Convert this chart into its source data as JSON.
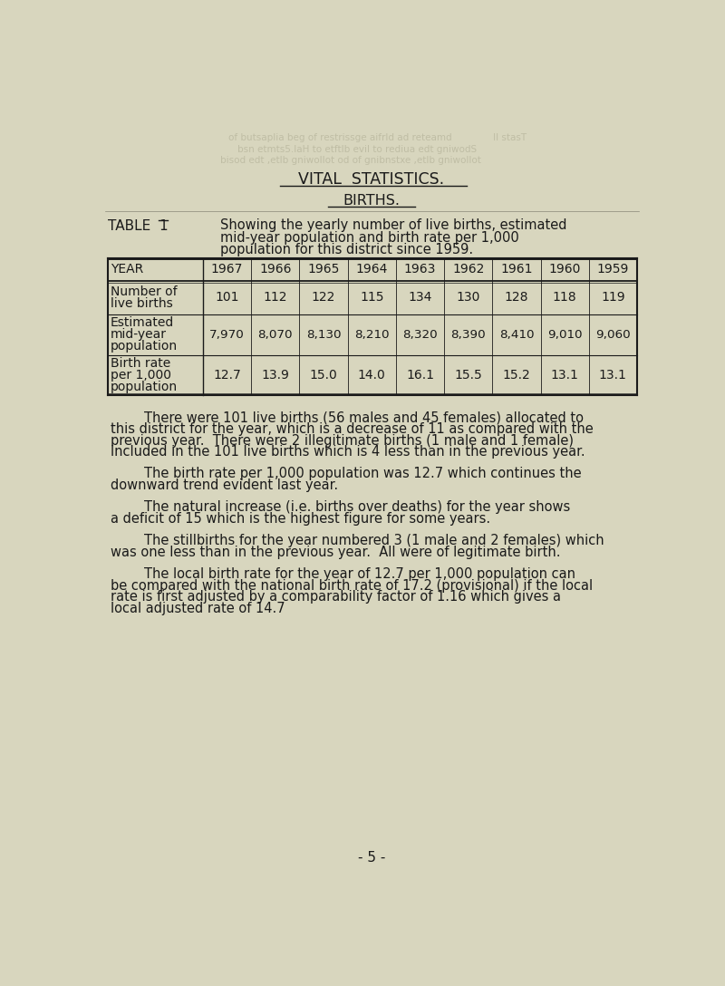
{
  "bg_color": "#d8d6be",
  "text_color": "#1a1a1a",
  "faded_color": "#9a9880",
  "title1": "VITAL  STATISTICS.",
  "title2": "BIRTHS.",
  "table_label_pre": "TABLE ",
  "table_label_num": "1",
  "table_desc_line1": "Showing the yearly number of live births, estimated",
  "table_desc_line2": "mid-year population and birth rate per 1,000",
  "table_desc_line3": "population for this district since 1959.",
  "years": [
    "1967",
    "1966",
    "1965",
    "1964",
    "1963",
    "1962",
    "1961",
    "1960",
    "1959"
  ],
  "live_births": [
    "101",
    "112",
    "122",
    "115",
    "134",
    "130",
    "128",
    "118",
    "119"
  ],
  "mid_year_pop": [
    "7,970",
    "8,070",
    "8,130",
    "8,210",
    "8,320",
    "8,390",
    "8,410",
    "9,010",
    "9,060"
  ],
  "birth_rate": [
    "12.7",
    "13.9",
    "15.0",
    "14.0",
    "16.1",
    "15.5",
    "15.2",
    "13.1",
    "13.1"
  ],
  "para1_lines": [
    "        There were 101 live births (56 males and 45 females) allocated to",
    "this district for the year, which is a decrease of 11 as compared with the",
    "previous year.  There were 2 illegitimate births (1 male and 1 female)",
    "included in the 101 live births which is 4 less than in the previous year."
  ],
  "para2_lines": [
    "        The birth rate per 1,000 population was 12.7 which continues the",
    "downward trend evident last year."
  ],
  "para3_lines": [
    "        The natural increase (i.e. births over deaths) for the year shows",
    "a deficit of 15 which is the highest figure for some years."
  ],
  "para4_lines": [
    "        The stillbirths for the year numbered 3 (1 male and 2 females) which",
    "was one less than in the previous year.  All were of legitimate birth."
  ],
  "para5_lines": [
    "        The local birth rate for the year of 12.7 per 1,000 population can",
    "be compared with the national birth rate of 17.2 (provisional) if the local",
    "rate is first adjusted by a comparability factor of 1.16 which gives a",
    "local adjusted rate of 14.7"
  ],
  "footer": "- 5 -",
  "ghost_lines": [
    "    of butsaplia beg of restrissge aifrld ad reteamd              II stasT",
    "bsn etmts5.laH to etftlb evil to rediua edt gniwodS",
    "bisod edt ,etlb gniwollot od of gnibnstxe ,etlb"
  ]
}
